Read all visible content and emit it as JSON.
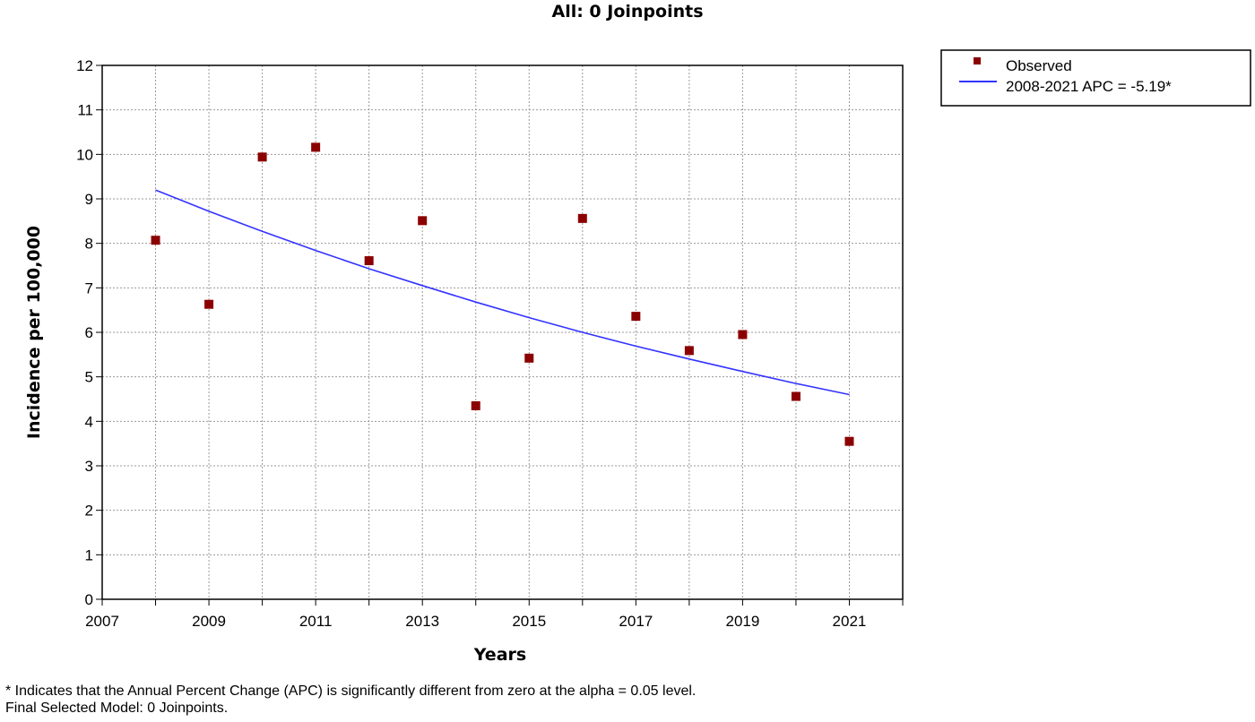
{
  "chart_data": {
    "type": "scatter",
    "title": "All: 0 Joinpoints",
    "xlabel": "Years",
    "ylabel": "Incidence per 100,000",
    "xlim": [
      2007,
      2022
    ],
    "ylim": [
      0,
      12
    ],
    "x_ticks": [
      2007,
      2009,
      2011,
      2013,
      2015,
      2017,
      2019,
      2021
    ],
    "y_ticks": [
      0,
      1,
      2,
      3,
      4,
      5,
      6,
      7,
      8,
      9,
      10,
      11,
      12
    ],
    "grid": true,
    "legend_position": "top-right, outside plot",
    "series": [
      {
        "name": "Observed",
        "kind": "points",
        "color": "#8b0000",
        "x": [
          2008,
          2009,
          2010,
          2011,
          2012,
          2013,
          2014,
          2015,
          2016,
          2017,
          2018,
          2019,
          2020,
          2021
        ],
        "y": [
          8.07,
          6.63,
          9.94,
          10.16,
          7.61,
          8.51,
          4.35,
          5.42,
          8.56,
          6.36,
          5.59,
          5.95,
          4.56,
          3.55
        ]
      },
      {
        "name": "2008-2021 APC  = -5.19*",
        "kind": "line",
        "color": "#3333ff",
        "apc": -5.19,
        "x": [
          2008,
          2009,
          2010,
          2011,
          2012,
          2013,
          2014,
          2015,
          2016,
          2017,
          2018,
          2019,
          2020,
          2021
        ],
        "y": [
          9.2,
          8.72,
          8.27,
          7.84,
          7.43,
          7.05,
          6.68,
          6.33,
          6.0,
          5.69,
          5.4,
          5.12,
          4.85,
          4.6
        ]
      }
    ]
  },
  "footnotes": [
    "* Indicates that the Annual Percent Change (APC) is significantly different from zero at the alpha = 0.05 level.",
    "Final Selected Model: 0 Joinpoints."
  ]
}
